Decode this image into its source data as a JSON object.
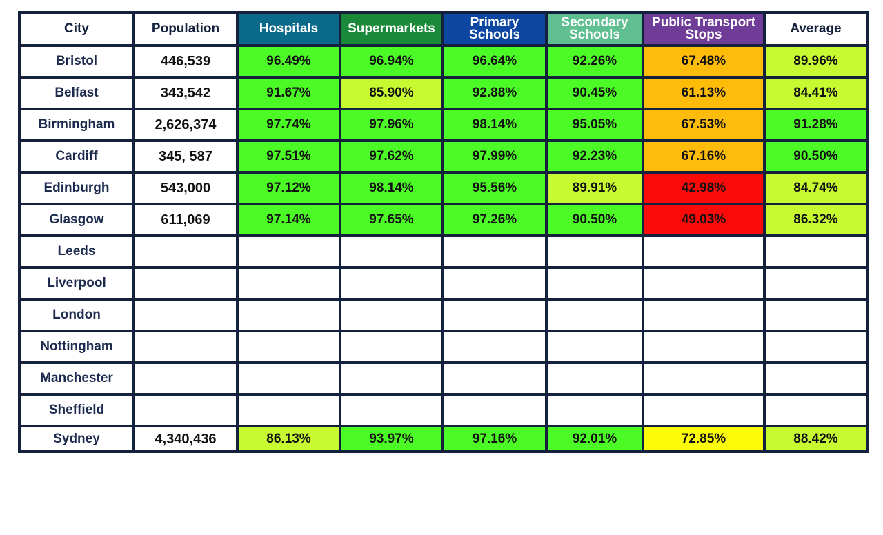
{
  "headers": [
    "City",
    "Population",
    "Hospitals",
    "Supermarkets",
    "Primary Schools",
    "Secondary Schools",
    "Public Transport Stops",
    "Average"
  ],
  "header_colors": [
    "#ffffff",
    "#ffffff",
    "#0b6a8a",
    "#1a8a3a",
    "#0d47a1",
    "#5fbf91",
    "#6f3d97",
    "#ffffff"
  ],
  "colors": {
    "green": "#4cfa26",
    "lime": "#c8fa32",
    "orange": "#fdbb0a",
    "red": "#fb0a0a",
    "yellow": "#fcfc0a",
    "white": "#ffffff",
    "border": "#14213d"
  },
  "rows": [
    {
      "city": "Bristol",
      "population": "446,539",
      "values": [
        "96.49%",
        "96.94%",
        "96.64%",
        "92.26%",
        "67.48%",
        "89.96%"
      ],
      "tones": [
        "green",
        "green",
        "green",
        "green",
        "orange",
        "lime"
      ]
    },
    {
      "city": "Belfast",
      "population": "343,542",
      "values": [
        "91.67%",
        "85.90%",
        "92.88%",
        "90.45%",
        "61.13%",
        "84.41%"
      ],
      "tones": [
        "green",
        "lime",
        "green",
        "green",
        "orange",
        "lime"
      ]
    },
    {
      "city": "Birmingham",
      "population": "2,626,374",
      "values": [
        "97.74%",
        "97.96%",
        "98.14%",
        "95.05%",
        "67.53%",
        "91.28%"
      ],
      "tones": [
        "green",
        "green",
        "green",
        "green",
        "orange",
        "green"
      ]
    },
    {
      "city": "Cardiff",
      "population": "345, 587",
      "values": [
        "97.51%",
        "97.62%",
        "97.99%",
        "92.23%",
        "67.16%",
        "90.50%"
      ],
      "tones": [
        "green",
        "green",
        "green",
        "green",
        "orange",
        "green"
      ]
    },
    {
      "city": "Edinburgh",
      "population": "543,000",
      "values": [
        "97.12%",
        "98.14%",
        "95.56%",
        "89.91%",
        "42.98%",
        "84.74%"
      ],
      "tones": [
        "green",
        "green",
        "green",
        "lime",
        "red",
        "lime"
      ]
    },
    {
      "city": "Glasgow",
      "population": "611,069",
      "values": [
        "97.14%",
        "97.65%",
        "97.26%",
        "90.50%",
        "49.03%",
        "86.32%"
      ],
      "tones": [
        "green",
        "green",
        "green",
        "green",
        "red",
        "lime"
      ]
    },
    {
      "city": "Leeds",
      "population": "",
      "values": [
        "",
        "",
        "",
        "",
        "",
        ""
      ],
      "tones": [
        "white",
        "white",
        "white",
        "white",
        "white",
        "white"
      ]
    },
    {
      "city": "Liverpool",
      "population": "",
      "values": [
        "",
        "",
        "",
        "",
        "",
        ""
      ],
      "tones": [
        "white",
        "white",
        "white",
        "white",
        "white",
        "white"
      ]
    },
    {
      "city": "London",
      "population": "",
      "values": [
        "",
        "",
        "",
        "",
        "",
        ""
      ],
      "tones": [
        "white",
        "white",
        "white",
        "white",
        "white",
        "white"
      ]
    },
    {
      "city": "Nottingham",
      "population": "",
      "values": [
        "",
        "",
        "",
        "",
        "",
        ""
      ],
      "tones": [
        "white",
        "white",
        "white",
        "white",
        "white",
        "white"
      ]
    },
    {
      "city": "Manchester",
      "population": "",
      "values": [
        "",
        "",
        "",
        "",
        "",
        ""
      ],
      "tones": [
        "white",
        "white",
        "white",
        "white",
        "white",
        "white"
      ]
    },
    {
      "city": "Sheffield",
      "population": "",
      "values": [
        "",
        "",
        "",
        "",
        "",
        ""
      ],
      "tones": [
        "white",
        "white",
        "white",
        "white",
        "white",
        "white"
      ]
    },
    {
      "city": "Sydney",
      "population": "4,340,436",
      "values": [
        "86.13%",
        "93.97%",
        "97.16%",
        "92.01%",
        "72.85%",
        "88.42%"
      ],
      "tones": [
        "lime",
        "green",
        "green",
        "green",
        "yellow",
        "lime"
      ]
    }
  ]
}
